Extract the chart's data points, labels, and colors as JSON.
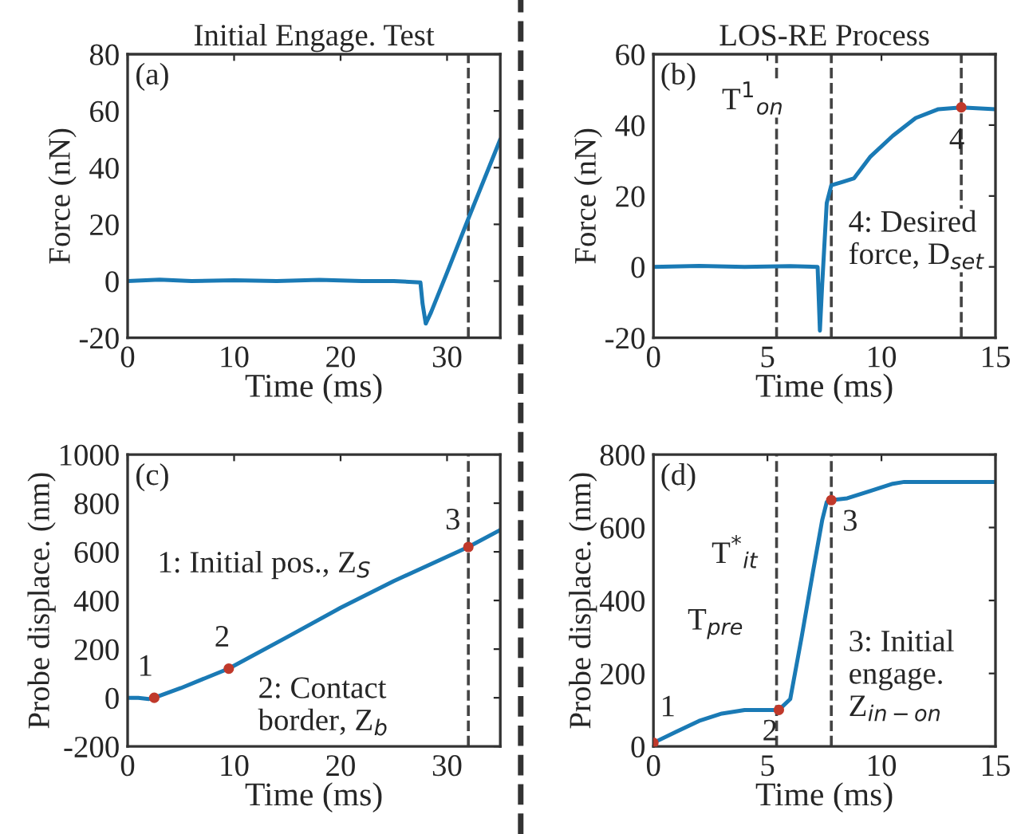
{
  "chart_data": [
    {
      "type": "line",
      "title": "Initial Engage. Test",
      "xlabel": "Time (ms)",
      "ylabel": "Force (nN)",
      "xlim": [
        0,
        35
      ],
      "ylim": [
        -20,
        80
      ],
      "xticks": [
        0,
        10,
        20,
        30
      ],
      "yticks": [
        -20,
        0,
        20,
        40,
        60,
        80
      ],
      "grid": false,
      "marker": "none",
      "line_style": "solid",
      "series": [
        {
          "color": "#1a7ab5",
          "x": [
            0,
            3,
            6,
            10,
            14,
            18,
            22,
            25,
            27.5,
            27.7,
            28,
            28.5,
            30,
            32,
            35
          ],
          "values": [
            0,
            0.5,
            0,
            0.3,
            0,
            0.4,
            0,
            0,
            -0.5,
            -8,
            -15,
            -11,
            3,
            22,
            50
          ]
        }
      ],
      "ref_lines": [
        {
          "axis": "x",
          "value": 32,
          "color": "#444444",
          "line_style": "dashed"
        }
      ],
      "annotations": [
        "(a)"
      ]
    },
    {
      "type": "line",
      "title": "LOS-RE Process",
      "xlabel": "Time (ms)",
      "ylabel": "Force (nN)",
      "xlim": [
        0,
        15
      ],
      "ylim": [
        -20,
        60
      ],
      "xticks": [
        0,
        5,
        10,
        15
      ],
      "yticks": [
        -20,
        0,
        20,
        40,
        60
      ],
      "grid": false,
      "marker": "none",
      "line_style": "solid",
      "series": [
        {
          "color": "#1a7ab5",
          "x": [
            0,
            2,
            4,
            6,
            7.2,
            7.3,
            7.4,
            7.6,
            7.8,
            8.3,
            8.8,
            9.5,
            10.5,
            11.5,
            12.5,
            13.5,
            15
          ],
          "values": [
            0,
            0.3,
            0,
            0.2,
            0,
            -18,
            -5,
            18,
            23,
            24,
            25,
            31,
            37,
            42,
            44.5,
            45,
            44.5
          ]
        },
        {
          "type": "scatter",
          "color": "#c0392b",
          "marker": "circle",
          "x": [
            13.5
          ],
          "values": [
            45
          ]
        }
      ],
      "ref_lines": [
        {
          "axis": "x",
          "value": 5.4,
          "color": "#444444",
          "line_style": "dashed"
        },
        {
          "axis": "x",
          "value": 7.8,
          "color": "#444444",
          "line_style": "dashed"
        },
        {
          "axis": "x",
          "value": 13.5,
          "color": "#444444",
          "line_style": "dashed"
        }
      ],
      "annotations": [
        "(b)",
        "T$^{1}$$_{on}$",
        {
          "text": "4",
          "x": 13.5,
          "y": 45
        },
        "4: Desired\nforce, D$_{set}$"
      ]
    },
    {
      "type": "line",
      "xlabel": "Time (ms)",
      "ylabel": "Probe displace. (nm)",
      "xlim": [
        0,
        35
      ],
      "ylim": [
        -200,
        1000
      ],
      "xticks": [
        0,
        10,
        20,
        30
      ],
      "yticks": [
        -200,
        0,
        200,
        400,
        600,
        800,
        1000
      ],
      "grid": false,
      "marker": "none",
      "line_style": "solid",
      "series": [
        {
          "color": "#1a7ab5",
          "x": [
            0,
            1,
            2,
            2.5,
            5,
            9.5,
            15,
            20,
            25,
            32,
            35
          ],
          "values": [
            0,
            0,
            -5,
            0,
            40,
            120,
            250,
            370,
            480,
            620,
            690
          ]
        },
        {
          "type": "scatter",
          "color": "#c0392b",
          "marker": "circle",
          "x": [
            2.5,
            9.5,
            32
          ],
          "values": [
            0,
            120,
            620
          ]
        }
      ],
      "ref_lines": [
        {
          "axis": "x",
          "value": 32,
          "color": "#444444",
          "line_style": "dashed"
        }
      ],
      "annotations": [
        "(c)",
        {
          "text": "1",
          "x": 2.5,
          "y": 0
        },
        {
          "text": "2",
          "x": 9.5,
          "y": 120
        },
        {
          "text": "3",
          "x": 32,
          "y": 620
        },
        "1: Initial pos., Z$_{S}$",
        "2: Contact\nborder, Z$_{b}$"
      ]
    },
    {
      "type": "line",
      "xlabel": "Time (ms)",
      "ylabel": "Probe displace. (nm)",
      "xlim": [
        0,
        15
      ],
      "ylim": [
        0,
        800
      ],
      "xticks": [
        0,
        5,
        10,
        15
      ],
      "yticks": [
        0,
        200,
        400,
        600,
        800
      ],
      "grid": false,
      "marker": "none",
      "line_style": "solid",
      "series": [
        {
          "color": "#1a7ab5",
          "x": [
            0,
            1,
            2,
            3,
            4,
            5,
            5.5,
            6,
            6.5,
            7,
            7.4,
            7.6,
            7.8,
            8.5,
            9.5,
            10.5,
            11,
            13,
            15
          ],
          "values": [
            10,
            40,
            70,
            90,
            100,
            100,
            100,
            130,
            300,
            480,
            620,
            670,
            675,
            680,
            700,
            720,
            725,
            725,
            725
          ]
        },
        {
          "type": "scatter",
          "color": "#c0392b",
          "marker": "circle",
          "x": [
            0,
            5.5,
            7.8
          ],
          "values": [
            10,
            100,
            675
          ]
        }
      ],
      "ref_lines": [
        {
          "axis": "x",
          "value": 5.4,
          "color": "#444444",
          "line_style": "dashed"
        },
        {
          "axis": "x",
          "value": 7.8,
          "color": "#444444",
          "line_style": "dashed"
        }
      ],
      "annotations": [
        "(d)",
        {
          "text": "1",
          "x": 0,
          "y": 10
        },
        {
          "text": "2",
          "x": 5.5,
          "y": 100
        },
        {
          "text": "3",
          "x": 7.8,
          "y": 675
        },
        "T$^{*}$$_{it}$",
        "T$_{pre}$",
        "3: Initial\nengage.\nZ$_{in−on}$"
      ]
    }
  ]
}
